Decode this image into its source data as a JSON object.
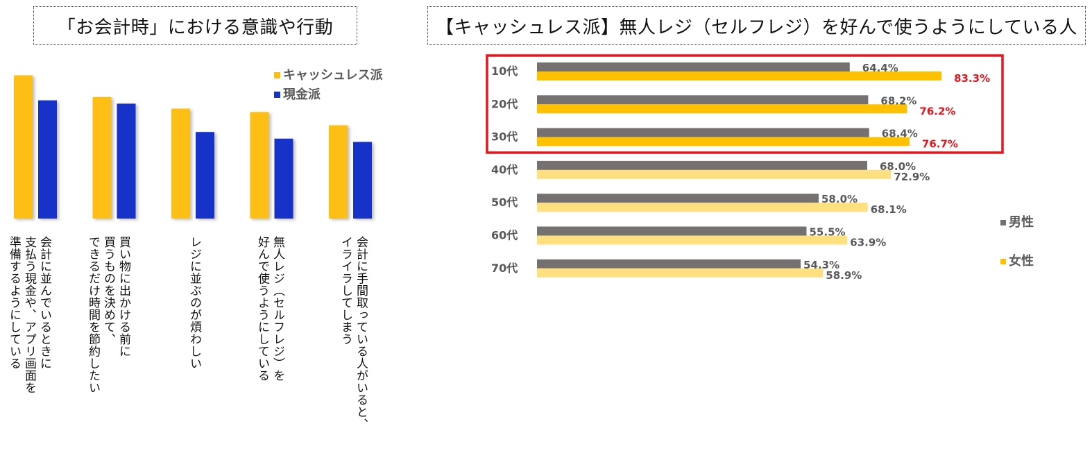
{
  "left_title": "「お会計時」における意識や行動",
  "right_title": "【キャッシュレス派】無人レジ（セルフレジ）を好んで使うようにしている人",
  "colors": {
    "cashless": "#FDBE14",
    "cash": "#1533C9",
    "male": "#767171",
    "female_highlight": "#FFC000",
    "female": "#FFE080",
    "highlight_label": "#E8141B",
    "highlight_box": "#E8141B",
    "value_label": "#595959"
  },
  "chart_data": [
    {
      "type": "bar",
      "categories": [
        "会計に並んでいるときに\n支払う現金や、アプリ画面を\n準備するようにしている",
        "買い物に出かける前に\n買うものを決めて、\nできるだけ時間を節約したい",
        "レジに並ぶのが煩わしい",
        "無人レジ（セルフレジ）を\n好んで使うようにしている",
        "会計に手間取っている人がいると、\nイライラしてしまう"
      ],
      "series": [
        {
          "name": "キャッシュレス派",
          "values": [
            86,
            73,
            66,
            64,
            56
          ]
        },
        {
          "name": "現金派",
          "values": [
            71,
            69,
            52,
            48,
            46
          ]
        }
      ],
      "ylim": [
        0,
        100
      ],
      "axes_visible": false,
      "legend_position": "top-right"
    },
    {
      "type": "bar",
      "orientation": "horizontal",
      "categories": [
        "10代",
        "20代",
        "30代",
        "40代",
        "50代",
        "60代",
        "70代"
      ],
      "series": [
        {
          "name": "男性",
          "values": [
            64.4,
            68.2,
            68.4,
            68.0,
            58.0,
            55.5,
            54.3
          ]
        },
        {
          "name": "女性",
          "values": [
            83.3,
            76.2,
            76.7,
            72.9,
            68.1,
            63.9,
            58.9
          ]
        }
      ],
      "value_labels": {
        "男性": [
          "64.4%",
          "68.2%",
          "68.4%",
          "68.0%",
          "58.0%",
          "55.5%",
          "54.3%"
        ],
        "女性": [
          "83.3%",
          "76.2%",
          "76.7%",
          "72.9%",
          "68.1%",
          "63.9%",
          "58.9%"
        ]
      },
      "highlighted_categories": [
        "10代",
        "20代",
        "30代"
      ],
      "xlim": [
        0,
        100
      ],
      "axes_visible": false,
      "legend_position": "right"
    }
  ]
}
